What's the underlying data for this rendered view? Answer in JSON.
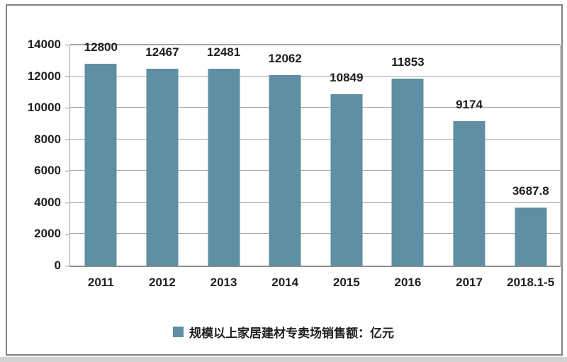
{
  "chart_data": {
    "type": "bar",
    "categories": [
      "2011",
      "2012",
      "2013",
      "2014",
      "2015",
      "2016",
      "2017",
      "2018.1-5"
    ],
    "series": [
      {
        "name": "规模以上家居建材专卖场销售额：亿元",
        "values": [
          12800,
          12467,
          12481,
          12062,
          10849,
          11853,
          9174,
          3687.8
        ]
      }
    ],
    "value_labels": [
      "12800",
      "12467",
      "12481",
      "12062",
      "10849",
      "11853",
      "9174",
      "3687.8"
    ],
    "title": "",
    "xlabel": "",
    "ylabel": "",
    "ylim": [
      0,
      14000
    ],
    "yticks": [
      0,
      2000,
      4000,
      6000,
      8000,
      10000,
      12000,
      14000
    ],
    "ytick_labels": [
      "0",
      "2000",
      "4000",
      "6000",
      "8000",
      "10000",
      "12000",
      "14000"
    ],
    "grid": "horizontal",
    "legend_position": "bottom"
  },
  "colors": {
    "bar": "#5e8fa3",
    "grid": "#a6a6a6",
    "axis": "#8c8c8c",
    "plot_border": "#a6a6a6",
    "frame_border": "#828282",
    "text": "#1f1f1f",
    "bottom_strip": "#d2d2d2",
    "background": "#ffffff"
  }
}
